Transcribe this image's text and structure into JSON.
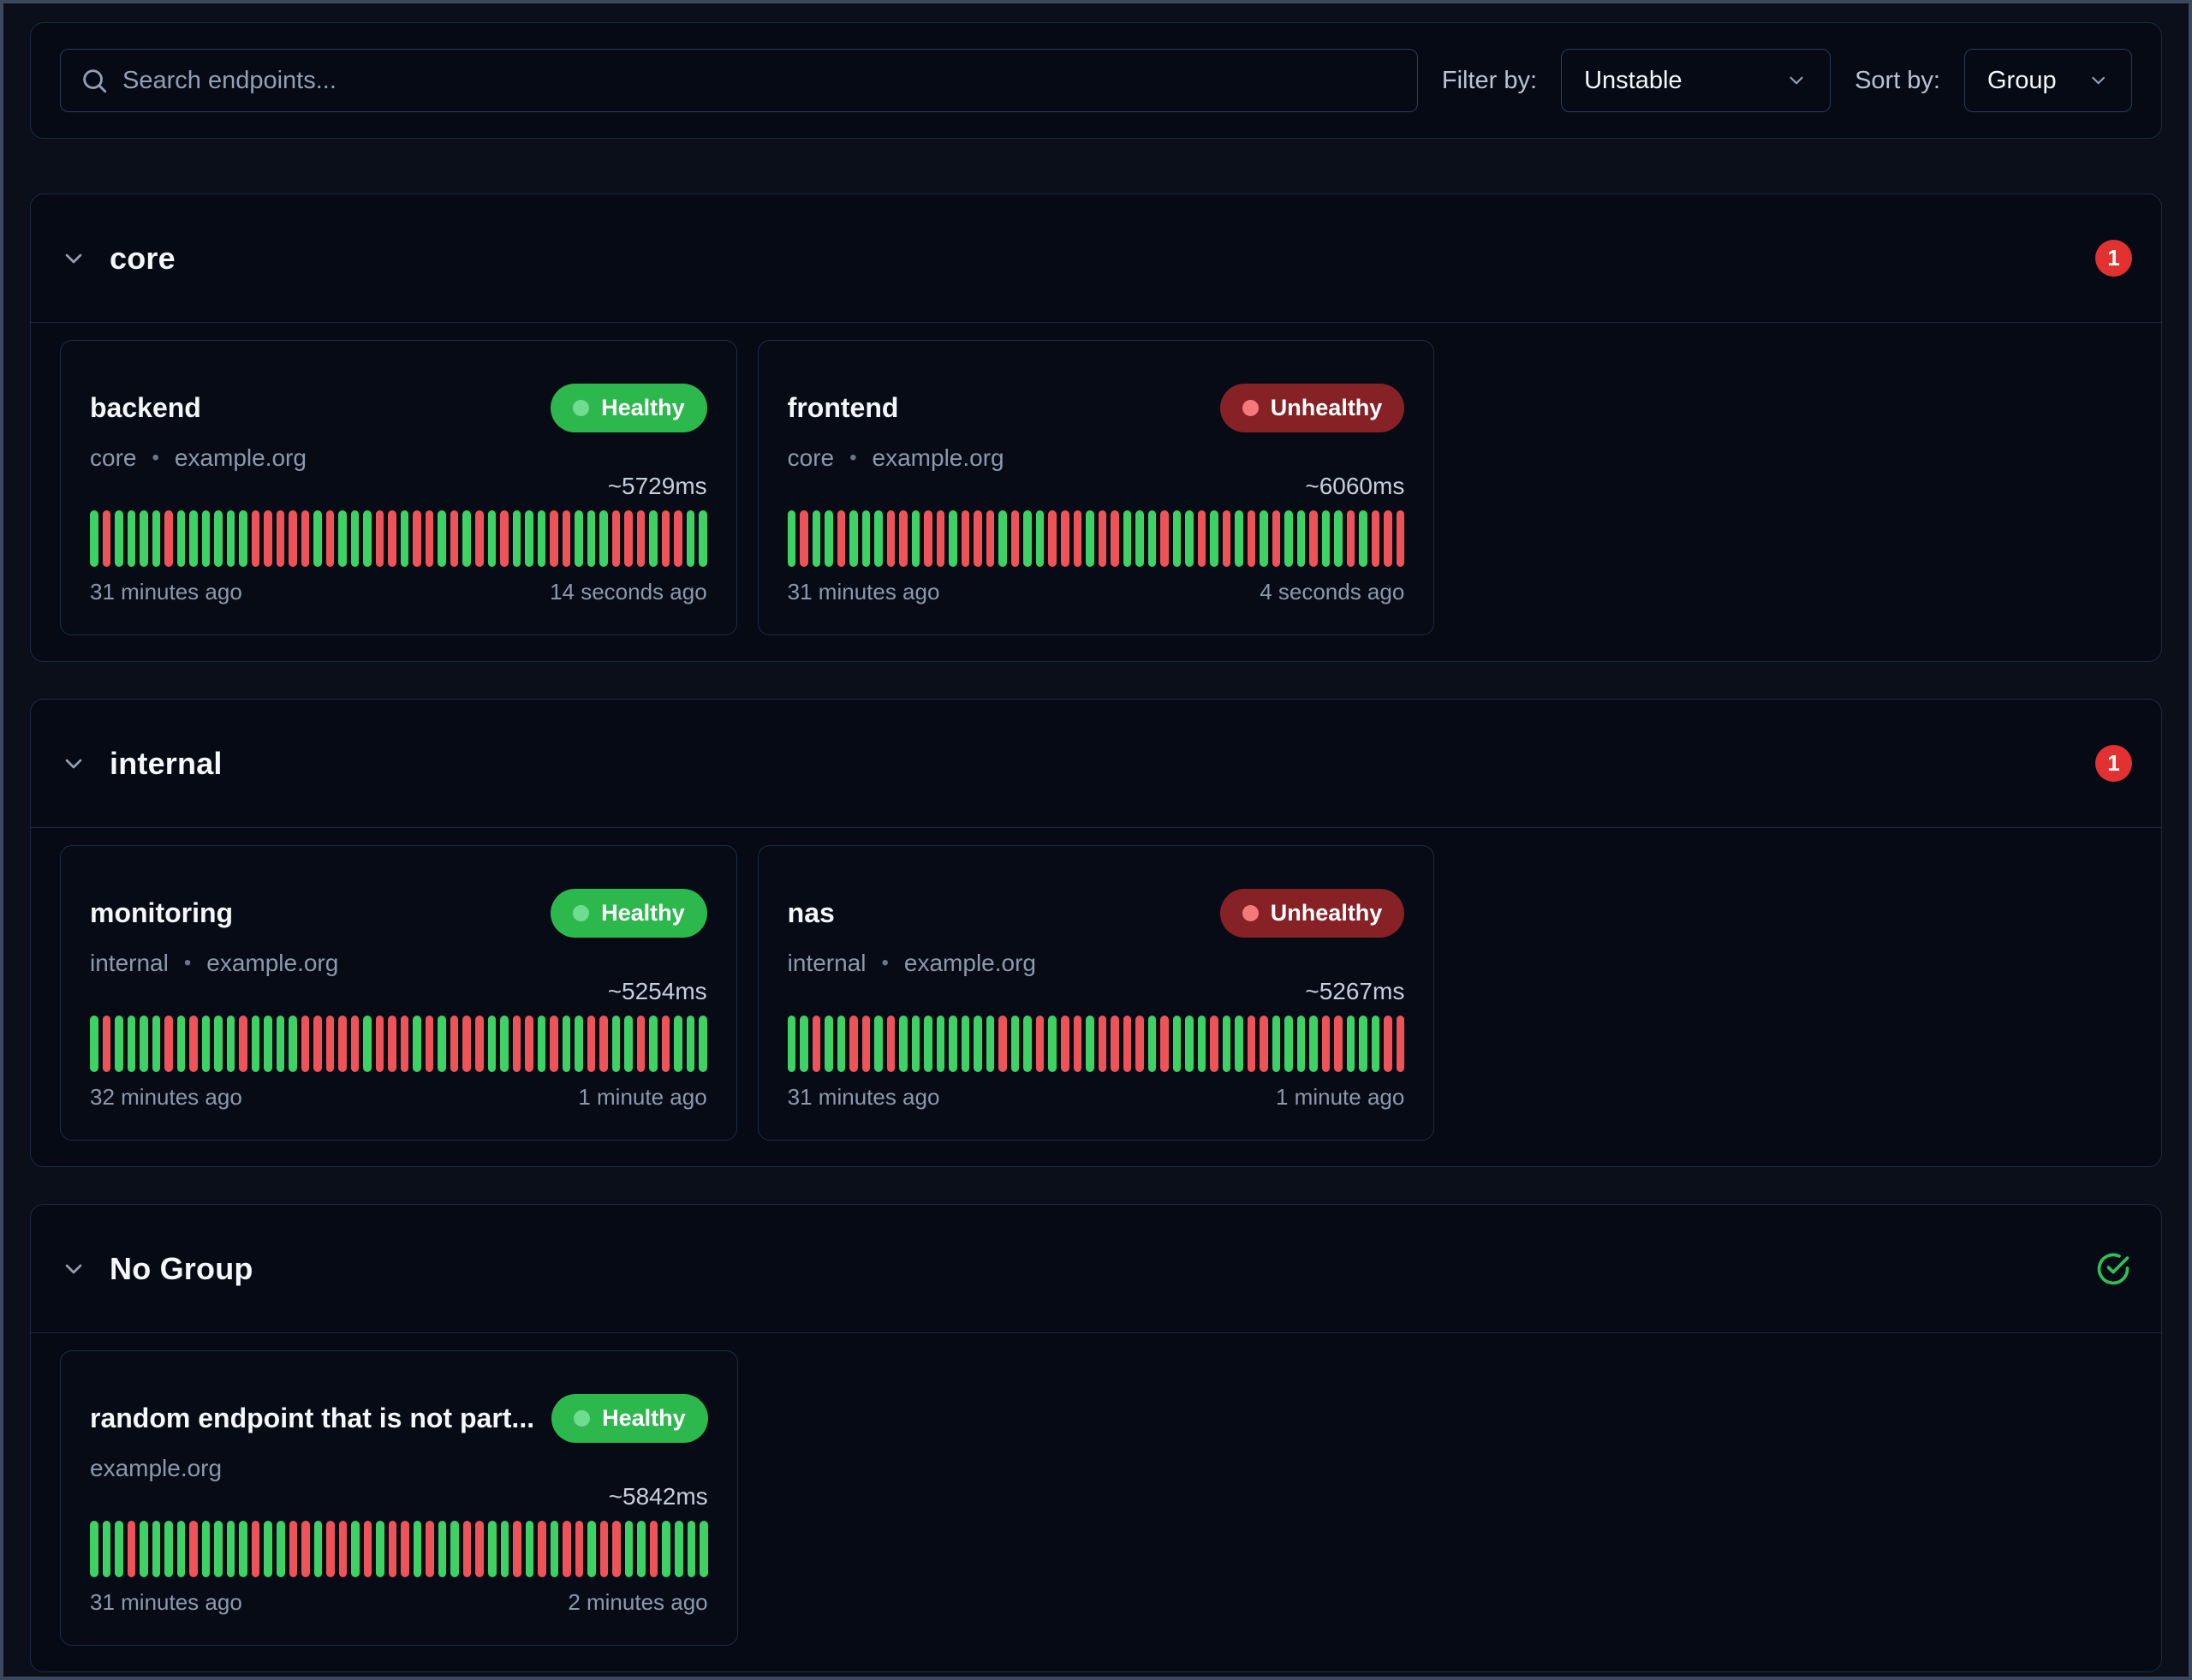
{
  "toolbar": {
    "search_placeholder": "Search endpoints...",
    "filter_label": "Filter by:",
    "filter_value": "Unstable",
    "sort_label": "Sort by:",
    "sort_value": "Group"
  },
  "colors": {
    "healthy_badge_bg": "#2db84e",
    "healthy_badge_dot": "#6fdd90",
    "unhealthy_badge_bg": "#862126",
    "unhealthy_badge_dot": "#f4797d",
    "bar_green": "#3ed164",
    "bar_red": "#ee5357",
    "count_badge_bg": "#e23131",
    "check_icon": "#2fc157"
  },
  "groups": [
    {
      "name": "core",
      "badge_type": "count",
      "badge": "1",
      "endpoints": [
        {
          "name": "backend",
          "status": "Healthy",
          "subtitle_parts": [
            "core",
            "example.org"
          ],
          "response_time": "~5729ms",
          "oldest": "31 minutes ago",
          "newest": "14 seconds ago",
          "history": "grggggrggggggrrrrrgrgggrrgrrgrgrgrgggrrgggrrrgrrgg"
        },
        {
          "name": "frontend",
          "status": "Unhealthy",
          "subtitle_parts": [
            "core",
            "example.org"
          ],
          "response_time": "~6060ms",
          "oldest": "31 minutes ago",
          "newest": "4 seconds ago",
          "history": "grggrgggrrgrrgrrrgrggrrrgrrgggrggrgrgrgrggrggrgrrr"
        }
      ]
    },
    {
      "name": "internal",
      "badge_type": "count",
      "badge": "1",
      "endpoints": [
        {
          "name": "monitoring",
          "status": "Healthy",
          "subtitle_parts": [
            "internal",
            "example.org"
          ],
          "response_time": "~5254ms",
          "oldest": "32 minutes ago",
          "newest": "1 minute ago",
          "history": "grggggrgrgggrggggrrrrrgrrrgrgrrrggrrgrggrrggrgrggg"
        },
        {
          "name": "nas",
          "status": "Unhealthy",
          "subtitle_parts": [
            "internal",
            "example.org"
          ],
          "response_time": "~5267ms",
          "oldest": "31 minutes ago",
          "newest": "1 minute ago",
          "history": "ggrggrrgrggggggggrggrgrrgrrrrgrgggrggrrggggrrgggrr"
        }
      ]
    },
    {
      "name": "No Group",
      "badge_type": "ok",
      "badge": "",
      "endpoints": [
        {
          "name": "random endpoint that is not part...",
          "status": "Healthy",
          "subtitle_parts": [
            "example.org"
          ],
          "response_time": "~5842ms",
          "oldest": "31 minutes ago",
          "newest": "2 minutes ago",
          "history": "gggrggggrggggrggrrgrrgrgrrgrggrrggrgrgrrgrrggrgggg"
        }
      ]
    }
  ]
}
